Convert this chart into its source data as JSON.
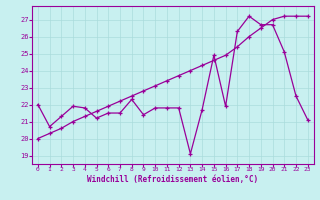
{
  "bg_color": "#c8f0f0",
  "line_color": "#990099",
  "grid_color": "#aadcdc",
  "xlabel": "Windchill (Refroidissement éolien,°C)",
  "x_ticks": [
    0,
    1,
    2,
    3,
    4,
    5,
    6,
    7,
    8,
    9,
    10,
    11,
    12,
    13,
    14,
    15,
    16,
    17,
    18,
    19,
    20,
    21,
    22,
    23
  ],
  "y_ticks": [
    19,
    20,
    21,
    22,
    23,
    24,
    25,
    26,
    27
  ],
  "ylim": [
    18.5,
    27.8
  ],
  "xlim": [
    -0.5,
    23.5
  ],
  "series1": [
    22.0,
    20.7,
    21.3,
    21.9,
    21.8,
    21.2,
    21.5,
    21.5,
    22.3,
    21.4,
    21.8,
    21.8,
    21.8,
    19.1,
    21.7,
    24.9,
    21.9,
    26.3,
    27.2,
    26.7,
    26.7,
    25.1,
    22.5,
    21.1
  ],
  "series2": [
    20.0,
    20.3,
    20.6,
    21.0,
    21.3,
    21.6,
    21.9,
    22.2,
    22.5,
    22.8,
    23.1,
    23.4,
    23.7,
    24.0,
    24.3,
    24.6,
    24.9,
    25.4,
    26.0,
    26.5,
    27.0,
    27.2,
    27.2,
    27.2
  ]
}
